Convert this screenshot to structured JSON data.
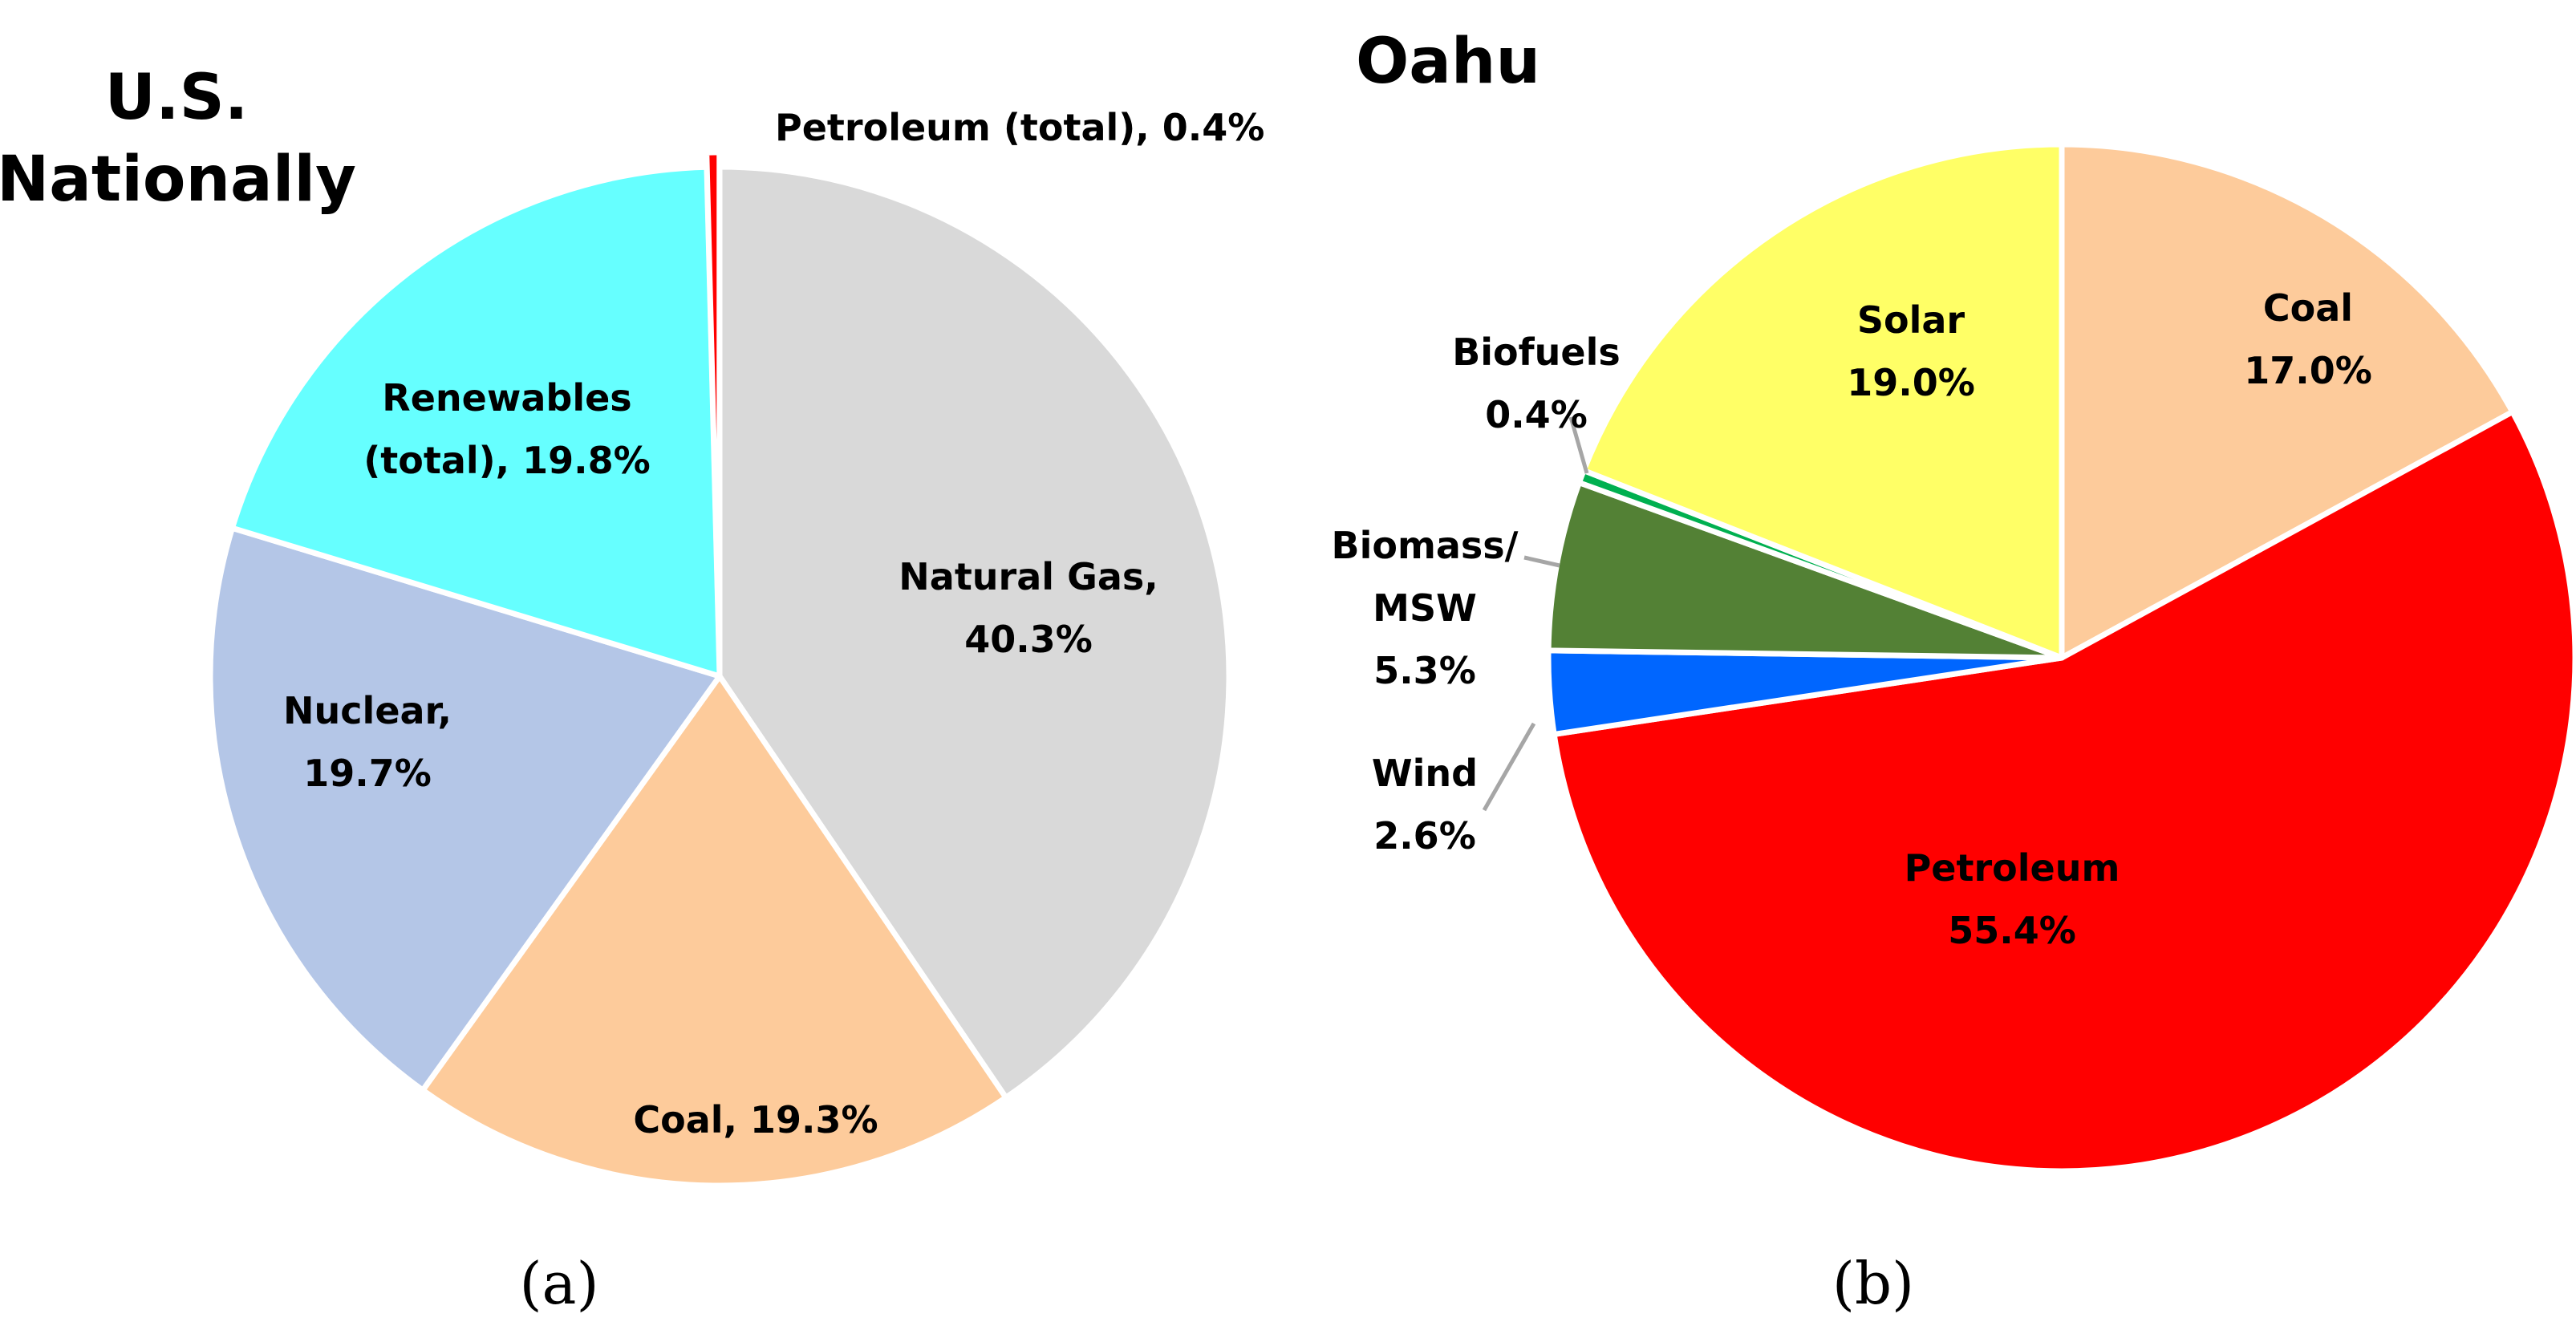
{
  "chart_data": [
    {
      "type": "pie",
      "title_lines": [
        "U.S.",
        "Nationally"
      ],
      "caption": "(a)",
      "categories": [
        "Natural Gas",
        "Coal",
        "Nuclear",
        "Renewables (total)",
        "Petroleum (total)"
      ],
      "values": [
        40.3,
        19.3,
        19.7,
        19.8,
        0.4
      ],
      "colors": [
        "#d9d9d9",
        "#fdcb9b",
        "#b4c6e7",
        "#66ffff",
        "#ff0000"
      ],
      "start": "12 o'clock, clockwise",
      "labels": [
        {
          "lines": [
            "Natural Gas,",
            "40.3%"
          ]
        },
        {
          "lines": [
            "Coal, 19.3%"
          ]
        },
        {
          "lines": [
            "Nuclear,",
            "19.7%"
          ]
        },
        {
          "lines": [
            "Renewables",
            "(total), 19.8%"
          ]
        },
        {
          "lines": [
            "Petroleum (total), 0.4%"
          ]
        }
      ],
      "exploded_slice": "Petroleum (total)"
    },
    {
      "type": "pie",
      "title_lines": [
        "Oahu"
      ],
      "caption": "(b)",
      "categories": [
        "Coal",
        "Petroleum",
        "Wind",
        "Biomass/MSW",
        "Biofuels",
        "Solar"
      ],
      "values": [
        17.0,
        55.4,
        2.6,
        5.3,
        0.4,
        19.0
      ],
      "colors": [
        "#fdcb9b",
        "#ff0000",
        "#0066ff",
        "#538135",
        "#00b050",
        "#ffff66"
      ],
      "start": "12 o'clock, clockwise",
      "labels": [
        {
          "lines": [
            "Coal",
            "17.0%"
          ]
        },
        {
          "lines": [
            "Petroleum",
            "55.4%"
          ]
        },
        {
          "lines": [
            "Wind",
            "2.6%"
          ]
        },
        {
          "lines": [
            "Biomass/",
            "MSW",
            "5.3%"
          ]
        },
        {
          "lines": [
            "Biofuels",
            "0.4%"
          ]
        },
        {
          "lines": [
            "Solar",
            "19.0%"
          ]
        }
      ]
    }
  ]
}
